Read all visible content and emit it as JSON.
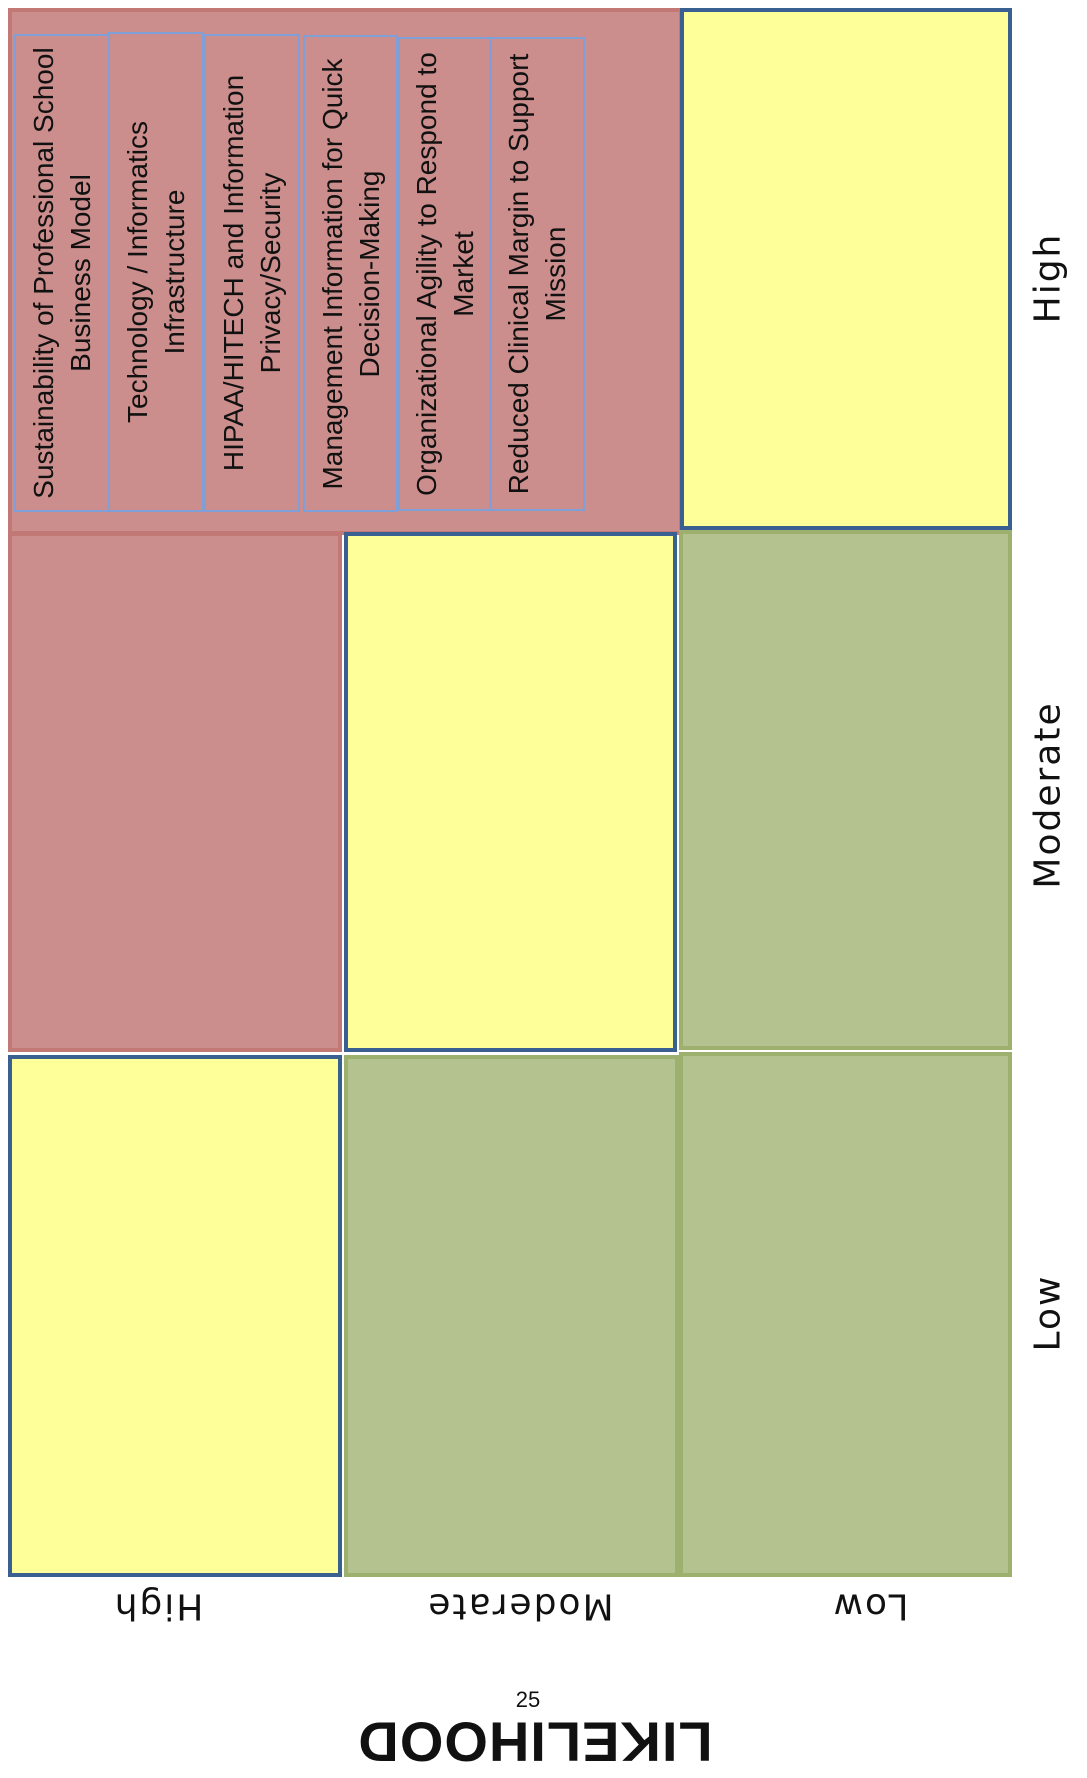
{
  "matrix": {
    "impact_labels": [
      "High",
      "Moderate",
      "Low"
    ],
    "likelihood_labels": [
      "High",
      "Moderate",
      "Low"
    ],
    "likelihood_title": "LIKELIHOOD",
    "page_number": "25",
    "colors": {
      "high_risk": "#cc8e8c",
      "medium_risk": "#ffff99",
      "low_risk": "#b4c28f",
      "border_blue": "#3a5f91"
    }
  },
  "risks": [
    {
      "label": "Sustainability of Professional School Business Model"
    },
    {
      "label": "Technology / Informatics Infrastructure"
    },
    {
      "label": "HIPAA/HITECH and Information Privacy/Security"
    },
    {
      "label": "Management Information for Quick Decision-Making"
    },
    {
      "label": "Organizational  Agility to Respond to Market"
    },
    {
      "label": "Reduced Clinical Margin to Support Mission"
    }
  ]
}
